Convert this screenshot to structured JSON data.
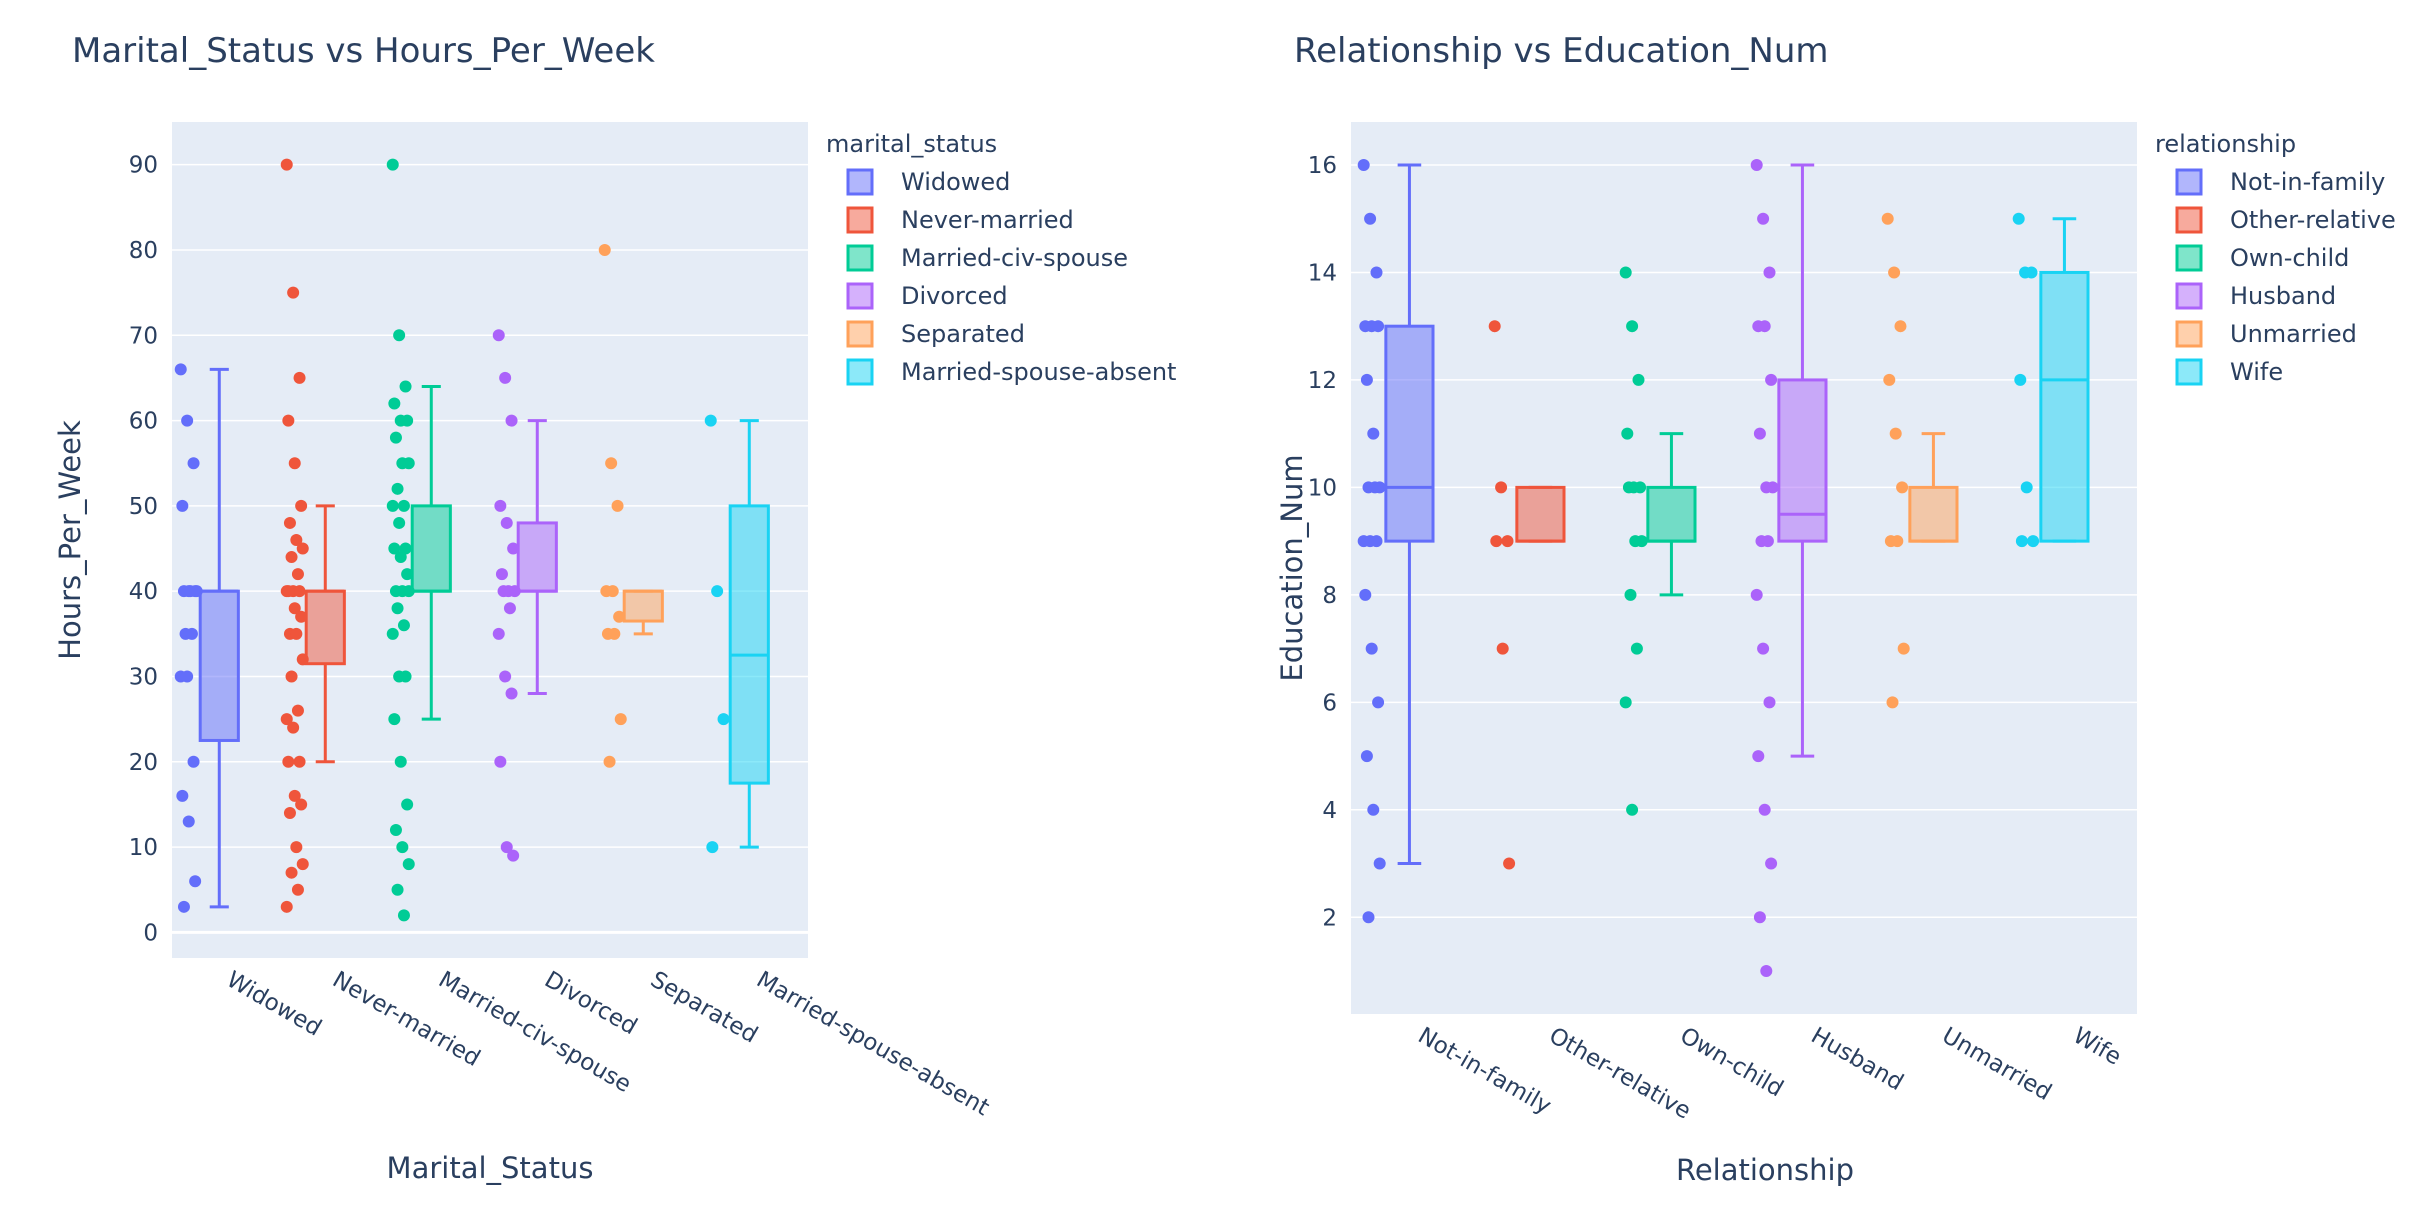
{
  "chart_data": [
    {
      "type": "box",
      "title": "Marital_Status vs Hours_Per_Week",
      "xlabel": "Marital_Status",
      "ylabel": "Hours_Per_Week",
      "ylim": [
        -3,
        95
      ],
      "yticks": [
        0,
        10,
        20,
        30,
        40,
        50,
        60,
        70,
        80,
        90
      ],
      "grid": true,
      "legend": {
        "title": "marital_status",
        "position": "right"
      },
      "categories": [
        "Widowed",
        "Never-married",
        "Married-civ-spouse",
        "Divorced",
        "Separated",
        "Married-spouse-absent"
      ],
      "series": [
        {
          "name": "Widowed",
          "color": "#636efa",
          "box": {
            "min": 3,
            "q1": 22.5,
            "median": 40,
            "q3": 40,
            "max": 66
          },
          "points": [
            66,
            60,
            55,
            50,
            40,
            40,
            40,
            40,
            40,
            35,
            35,
            30,
            30,
            20,
            16,
            13,
            6,
            3
          ]
        },
        {
          "name": "Never-married",
          "color": "#EF553B",
          "box": {
            "min": 20,
            "q1": 31.5,
            "median": 40,
            "q3": 40,
            "max": 50
          },
          "points": [
            90,
            75,
            65,
            60,
            55,
            50,
            48,
            46,
            45,
            44,
            42,
            40,
            40,
            40,
            40,
            38,
            37,
            35,
            35,
            32,
            30,
            26,
            25,
            24,
            20,
            20,
            16,
            15,
            14,
            10,
            8,
            7,
            5,
            3
          ]
        },
        {
          "name": "Married-civ-spouse",
          "color": "#00cc96",
          "box": {
            "min": 25,
            "q1": 40,
            "median": 40,
            "q3": 50,
            "max": 64
          },
          "points": [
            90,
            70,
            64,
            62,
            60,
            60,
            58,
            55,
            55,
            52,
            50,
            50,
            48,
            45,
            45,
            44,
            42,
            40,
            40,
            40,
            38,
            36,
            35,
            30,
            30,
            25,
            20,
            15,
            12,
            10,
            8,
            5,
            2
          ]
        },
        {
          "name": "Divorced",
          "color": "#ab63fa",
          "box": {
            "min": 28,
            "q1": 40,
            "median": 40,
            "q3": 48,
            "max": 60
          },
          "points": [
            70,
            65,
            60,
            50,
            48,
            45,
            42,
            40,
            40,
            40,
            38,
            35,
            30,
            28,
            20,
            10,
            9
          ]
        },
        {
          "name": "Separated",
          "color": "#FFA15A",
          "box": {
            "min": 35,
            "q1": 36.5,
            "median": 40,
            "q3": 40,
            "max": 40
          },
          "points": [
            80,
            55,
            50,
            40,
            40,
            37,
            35,
            35,
            25,
            20
          ]
        },
        {
          "name": "Married-spouse-absent",
          "color": "#19d3f3",
          "box": {
            "min": 10,
            "q1": 17.5,
            "median": 32.5,
            "q3": 50,
            "max": 60
          },
          "points": [
            60,
            40,
            25,
            10
          ]
        }
      ]
    },
    {
      "type": "box",
      "title": "Relationship vs Education_Num",
      "xlabel": "Relationship",
      "ylabel": "Education_Num",
      "ylim": [
        0.2,
        16.8
      ],
      "yticks": [
        2,
        4,
        6,
        8,
        10,
        12,
        14,
        16
      ],
      "grid": true,
      "legend": {
        "title": "relationship",
        "position": "right"
      },
      "categories": [
        "Not-in-family",
        "Other-relative",
        "Own-child",
        "Husband",
        "Unmarried",
        "Wife"
      ],
      "series": [
        {
          "name": "Not-in-family",
          "color": "#636efa",
          "box": {
            "min": 3,
            "q1": 9,
            "median": 10,
            "q3": 13,
            "max": 16
          },
          "points": [
            16,
            15,
            14,
            13,
            13,
            13,
            12,
            11,
            10,
            10,
            10,
            9,
            9,
            9,
            8,
            7,
            6,
            5,
            4,
            3,
            2
          ]
        },
        {
          "name": "Other-relative",
          "color": "#EF553B",
          "box": {
            "min": 9,
            "q1": 9,
            "median": 9,
            "q3": 10,
            "max": 10
          },
          "points": [
            13,
            10,
            9,
            9,
            7,
            3
          ]
        },
        {
          "name": "Own-child",
          "color": "#00cc96",
          "box": {
            "min": 8,
            "q1": 9,
            "median": 9,
            "q3": 10,
            "max": 11
          },
          "points": [
            14,
            13,
            12,
            11,
            10,
            10,
            10,
            9,
            9,
            8,
            7,
            6,
            4
          ]
        },
        {
          "name": "Husband",
          "color": "#ab63fa",
          "box": {
            "min": 5,
            "q1": 9,
            "median": 9.5,
            "q3": 12,
            "max": 16
          },
          "points": [
            16,
            15,
            14,
            13,
            13,
            12,
            11,
            10,
            10,
            9,
            9,
            8,
            7,
            6,
            5,
            4,
            3,
            2,
            1
          ]
        },
        {
          "name": "Unmarried",
          "color": "#FFA15A",
          "box": {
            "min": 9,
            "q1": 9,
            "median": 9,
            "q3": 10,
            "max": 11
          },
          "points": [
            15,
            14,
            13,
            12,
            11,
            10,
            9,
            9,
            7,
            6
          ]
        },
        {
          "name": "Wife",
          "color": "#19d3f3",
          "box": {
            "min": 9,
            "q1": 9,
            "median": 12,
            "q3": 14,
            "max": 15
          },
          "points": [
            15,
            14,
            14,
            12,
            10,
            9,
            9
          ]
        }
      ]
    }
  ]
}
